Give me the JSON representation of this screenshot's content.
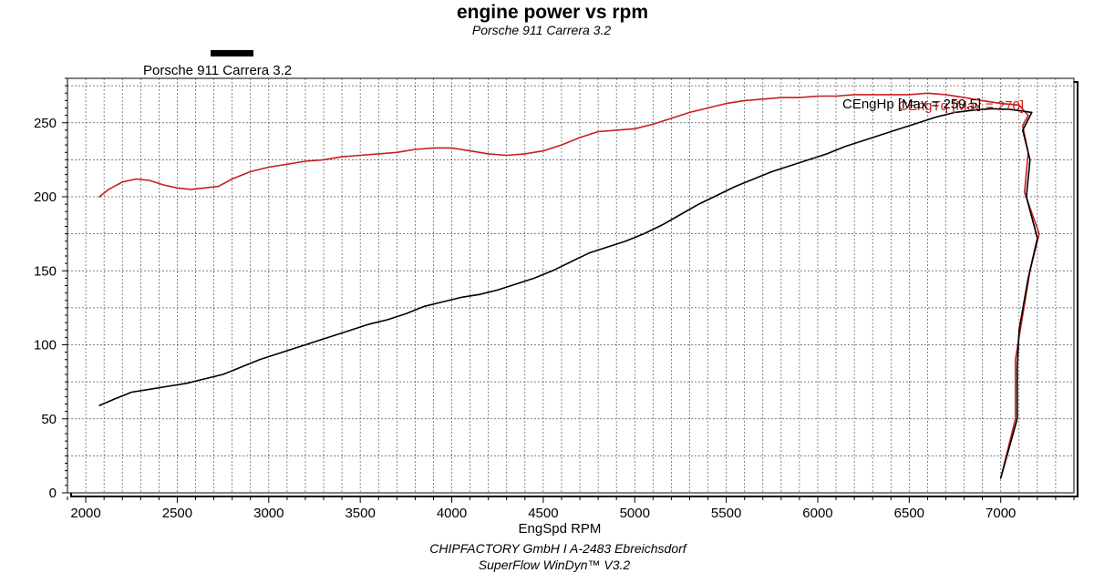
{
  "chart_data": {
    "type": "line",
    "title": "engine power vs rpm",
    "subtitle": "Porsche 911 Carrera 3.2",
    "xlabel": "EngSpd RPM",
    "ylabel": "",
    "xlim": [
      1900,
      7400
    ],
    "ylim": [
      0,
      280
    ],
    "x_ticks": [
      2000,
      2500,
      3000,
      3500,
      4000,
      4500,
      5000,
      5500,
      6000,
      6500,
      7000
    ],
    "y_ticks": [
      0,
      50,
      100,
      150,
      200,
      250
    ],
    "grid": true,
    "legend": {
      "placement": "top-left",
      "entries": [
        {
          "label": "Porsche 911 Carrera 3.2",
          "color": "#000000"
        }
      ]
    },
    "footer": [
      "CHIPFACTORY GmbH I A-2483 Ebreichsdorf",
      "SuperFlow WinDyn™ V3.2"
    ],
    "series": [
      {
        "color": "#c81e1e",
        "annotation": "CEngTq [Max = 270]",
        "points": [
          [
            2075,
            200
          ],
          [
            2125,
            205
          ],
          [
            2200,
            210
          ],
          [
            2275,
            212
          ],
          [
            2350,
            211
          ],
          [
            2425,
            208
          ],
          [
            2500,
            206
          ],
          [
            2575,
            205
          ],
          [
            2650,
            206
          ],
          [
            2725,
            207
          ],
          [
            2800,
            212
          ],
          [
            2900,
            217
          ],
          [
            3000,
            220
          ],
          [
            3100,
            222
          ],
          [
            3200,
            224
          ],
          [
            3300,
            225
          ],
          [
            3400,
            227
          ],
          [
            3500,
            228
          ],
          [
            3600,
            229
          ],
          [
            3700,
            230
          ],
          [
            3800,
            232
          ],
          [
            3900,
            233
          ],
          [
            4000,
            233
          ],
          [
            4100,
            231
          ],
          [
            4200,
            229
          ],
          [
            4300,
            228
          ],
          [
            4400,
            229
          ],
          [
            4500,
            231
          ],
          [
            4600,
            235
          ],
          [
            4700,
            240
          ],
          [
            4800,
            244
          ],
          [
            4900,
            245
          ],
          [
            5000,
            246
          ],
          [
            5100,
            249
          ],
          [
            5200,
            253
          ],
          [
            5300,
            257
          ],
          [
            5400,
            260
          ],
          [
            5500,
            263
          ],
          [
            5600,
            265
          ],
          [
            5700,
            266
          ],
          [
            5800,
            267
          ],
          [
            5900,
            267
          ],
          [
            6000,
            268
          ],
          [
            6100,
            268
          ],
          [
            6200,
            269
          ],
          [
            6300,
            269
          ],
          [
            6400,
            269
          ],
          [
            6500,
            269
          ],
          [
            6600,
            270
          ],
          [
            6700,
            269
          ],
          [
            6800,
            267
          ],
          [
            6900,
            265
          ],
          [
            7000,
            263
          ],
          [
            7100,
            262
          ],
          [
            7150,
            255
          ],
          [
            7120,
            248
          ],
          [
            7150,
            230
          ],
          [
            7130,
            203
          ],
          [
            7210,
            175
          ],
          [
            7160,
            150
          ],
          [
            7120,
            120
          ],
          [
            7080,
            90
          ],
          [
            7080,
            50
          ],
          [
            7000,
            10
          ]
        ]
      },
      {
        "color": "#000000",
        "annotation": "CEngHp [Max = 259.5]",
        "points": [
          [
            2075,
            59
          ],
          [
            2150,
            63
          ],
          [
            2250,
            68
          ],
          [
            2350,
            70
          ],
          [
            2450,
            72
          ],
          [
            2550,
            74
          ],
          [
            2650,
            77
          ],
          [
            2750,
            80
          ],
          [
            2850,
            85
          ],
          [
            2950,
            90
          ],
          [
            3050,
            94
          ],
          [
            3150,
            98
          ],
          [
            3250,
            102
          ],
          [
            3350,
            106
          ],
          [
            3450,
            110
          ],
          [
            3550,
            114
          ],
          [
            3650,
            117
          ],
          [
            3750,
            121
          ],
          [
            3850,
            126
          ],
          [
            3950,
            129
          ],
          [
            4050,
            132
          ],
          [
            4150,
            134
          ],
          [
            4250,
            137
          ],
          [
            4350,
            141
          ],
          [
            4450,
            145
          ],
          [
            4550,
            150
          ],
          [
            4650,
            156
          ],
          [
            4750,
            162
          ],
          [
            4850,
            166
          ],
          [
            4950,
            170
          ],
          [
            5050,
            175
          ],
          [
            5150,
            181
          ],
          [
            5250,
            188
          ],
          [
            5350,
            195
          ],
          [
            5450,
            201
          ],
          [
            5550,
            207
          ],
          [
            5650,
            212
          ],
          [
            5750,
            217
          ],
          [
            5850,
            221
          ],
          [
            5950,
            225
          ],
          [
            6050,
            229
          ],
          [
            6150,
            234
          ],
          [
            6250,
            238
          ],
          [
            6350,
            242
          ],
          [
            6450,
            246
          ],
          [
            6550,
            250
          ],
          [
            6650,
            254
          ],
          [
            6750,
            257
          ],
          [
            6850,
            258.5
          ],
          [
            6950,
            259.5
          ],
          [
            7050,
            259
          ],
          [
            7170,
            257
          ],
          [
            7120,
            245
          ],
          [
            7160,
            225
          ],
          [
            7140,
            200
          ],
          [
            7200,
            172
          ],
          [
            7150,
            145
          ],
          [
            7100,
            110
          ],
          [
            7090,
            85
          ],
          [
            7090,
            50
          ],
          [
            7000,
            10
          ]
        ]
      }
    ]
  }
}
